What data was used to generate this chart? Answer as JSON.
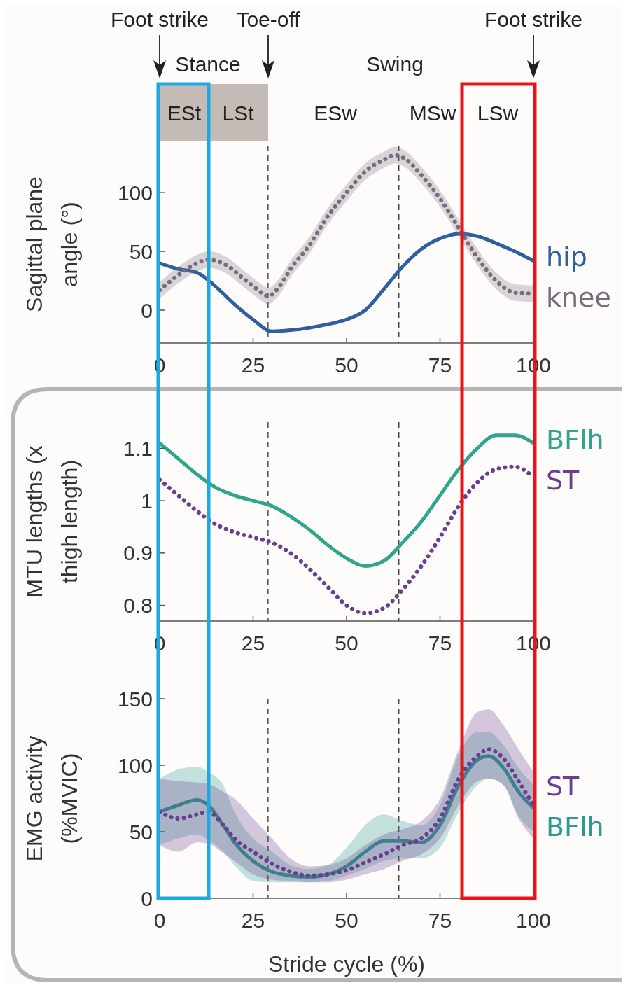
{
  "chart_data": [
    {
      "type": "line",
      "ylabel": "Sagittal plane angle (°)",
      "xlim": [
        0,
        100
      ],
      "xticks": [
        0,
        25,
        50,
        75,
        100
      ],
      "ylim": [
        -28,
        140
      ],
      "yticks": [
        0,
        50,
        100
      ],
      "legend": "right",
      "series": [
        {
          "name": "hip",
          "color": "#2f5f9e",
          "line_style": "solid",
          "x": [
            0,
            5,
            10,
            15,
            20,
            25,
            30,
            35,
            40,
            45,
            50,
            55,
            60,
            65,
            70,
            75,
            80,
            85,
            90,
            95,
            100
          ],
          "values": [
            40,
            35,
            32,
            20,
            5,
            -8,
            -18,
            -17,
            -15,
            -12,
            -8,
            0,
            18,
            37,
            52,
            61,
            65,
            63,
            57,
            50,
            42
          ]
        },
        {
          "name": "knee",
          "color": "#7b6b7f",
          "line_style": "dotted",
          "x": [
            0,
            5,
            10,
            13,
            18,
            22,
            26,
            29,
            32,
            35,
            40,
            45,
            50,
            55,
            60,
            63,
            66,
            70,
            75,
            80,
            85,
            90,
            95,
            100
          ],
          "values": [
            17,
            30,
            40,
            43,
            38,
            28,
            18,
            12,
            20,
            35,
            55,
            80,
            100,
            118,
            128,
            132,
            128,
            115,
            95,
            70,
            45,
            25,
            15,
            14
          ],
          "lower": [
            10,
            23,
            33,
            36,
            31,
            21,
            11,
            5,
            13,
            28,
            48,
            73,
            93,
            111,
            121,
            125,
            121,
            108,
            88,
            63,
            38,
            18,
            8,
            7
          ],
          "upper": [
            24,
            37,
            47,
            50,
            45,
            35,
            25,
            19,
            27,
            42,
            62,
            87,
            107,
            125,
            135,
            139,
            135,
            122,
            102,
            77,
            52,
            32,
            22,
            21
          ]
        }
      ],
      "ref_lines": [
        {
          "axis": "x",
          "value": 29,
          "line_style": "dashed",
          "color": "#333333"
        },
        {
          "axis": "x",
          "value": 64,
          "line_style": "dashed",
          "color": "#333333"
        }
      ],
      "annotations": [
        "Foot strike",
        "Toe-off",
        "Foot strike",
        "Stance",
        "Swing",
        "ESt",
        "LSt",
        "ESw",
        "MSw",
        "LSw"
      ]
    },
    {
      "type": "line",
      "ylabel": "MTU lengths (x thigh length)",
      "xlim": [
        0,
        100
      ],
      "xticks": [
        0,
        25,
        50,
        75,
        100
      ],
      "ylim": [
        0.77,
        1.15
      ],
      "yticks": [
        0.8,
        0.9,
        1,
        1.1
      ],
      "legend": "right",
      "series": [
        {
          "name": "BFlh",
          "color": "#2ea58c",
          "line_style": "solid",
          "x": [
            0,
            5,
            10,
            15,
            20,
            25,
            30,
            35,
            40,
            45,
            50,
            55,
            60,
            65,
            70,
            75,
            80,
            85,
            90,
            95,
            100
          ],
          "values": [
            1.11,
            1.08,
            1.05,
            1.025,
            1.01,
            1.0,
            0.99,
            0.97,
            0.945,
            0.915,
            0.89,
            0.875,
            0.885,
            0.92,
            0.96,
            1.01,
            1.06,
            1.1,
            1.125,
            1.125,
            1.11
          ]
        },
        {
          "name": "ST",
          "color": "#6b3d8e",
          "line_style": "dotted",
          "x": [
            0,
            5,
            10,
            15,
            20,
            25,
            30,
            35,
            40,
            45,
            50,
            55,
            60,
            65,
            70,
            75,
            80,
            85,
            90,
            95,
            100
          ],
          "values": [
            1.04,
            1.01,
            0.98,
            0.955,
            0.94,
            0.93,
            0.92,
            0.9,
            0.87,
            0.835,
            0.8,
            0.785,
            0.795,
            0.83,
            0.875,
            0.93,
            0.99,
            1.035,
            1.06,
            1.065,
            1.045
          ]
        }
      ],
      "ref_lines": [
        {
          "axis": "x",
          "value": 29,
          "line_style": "dashed",
          "color": "#333333"
        },
        {
          "axis": "x",
          "value": 64,
          "line_style": "dashed",
          "color": "#333333"
        }
      ]
    },
    {
      "type": "line",
      "ylabel": "EMG activity (%MVIC)",
      "xlabel": "Stride cycle (%)",
      "xlim": [
        0,
        100
      ],
      "xticks": [
        0,
        25,
        50,
        75,
        100
      ],
      "ylim": [
        0,
        150
      ],
      "yticks": [
        0,
        50,
        100,
        150
      ],
      "legend": "right",
      "series": [
        {
          "name": "BFlh",
          "color": "#2e9a8e",
          "line_style": "solid",
          "x": [
            0,
            5,
            10,
            13,
            17,
            20,
            25,
            30,
            35,
            40,
            45,
            50,
            55,
            60,
            65,
            70,
            75,
            80,
            85,
            88,
            92,
            96,
            100
          ],
          "values": [
            65,
            70,
            74,
            70,
            55,
            42,
            28,
            20,
            17,
            16,
            18,
            24,
            35,
            43,
            43,
            42,
            55,
            85,
            104,
            107,
            98,
            80,
            68
          ],
          "lower": [
            40,
            45,
            48,
            44,
            35,
            25,
            13,
            12,
            12,
            12,
            13,
            17,
            22,
            28,
            30,
            30,
            38,
            65,
            85,
            90,
            85,
            62,
            50
          ],
          "upper": [
            90,
            97,
            99,
            95,
            85,
            65,
            45,
            35,
            25,
            22,
            25,
            38,
            55,
            63,
            58,
            55,
            70,
            108,
            125,
            125,
            115,
            98,
            85
          ]
        },
        {
          "name": "ST",
          "color": "#6b3d8e",
          "line_style": "dotted",
          "x": [
            0,
            5,
            10,
            13,
            17,
            20,
            25,
            30,
            35,
            40,
            45,
            50,
            55,
            60,
            65,
            70,
            75,
            80,
            85,
            88,
            92,
            96,
            100
          ],
          "values": [
            65,
            60,
            63,
            65,
            55,
            45,
            35,
            26,
            20,
            17,
            18,
            21,
            27,
            33,
            40,
            45,
            60,
            90,
            107,
            112,
            105,
            88,
            70
          ],
          "lower": [
            40,
            35,
            42,
            41,
            34,
            28,
            18,
            14,
            13,
            12,
            12,
            14,
            18,
            22,
            28,
            33,
            45,
            70,
            88,
            90,
            85,
            60,
            45
          ],
          "upper": [
            90,
            88,
            87,
            86,
            80,
            75,
            60,
            45,
            30,
            24,
            25,
            30,
            40,
            48,
            52,
            58,
            75,
            112,
            140,
            142,
            130,
            112,
            95
          ]
        }
      ],
      "ref_lines": [
        {
          "axis": "x",
          "value": 29,
          "line_style": "dashed",
          "color": "#333333"
        },
        {
          "axis": "x",
          "value": 64,
          "line_style": "dashed",
          "color": "#333333"
        }
      ]
    }
  ]
}
